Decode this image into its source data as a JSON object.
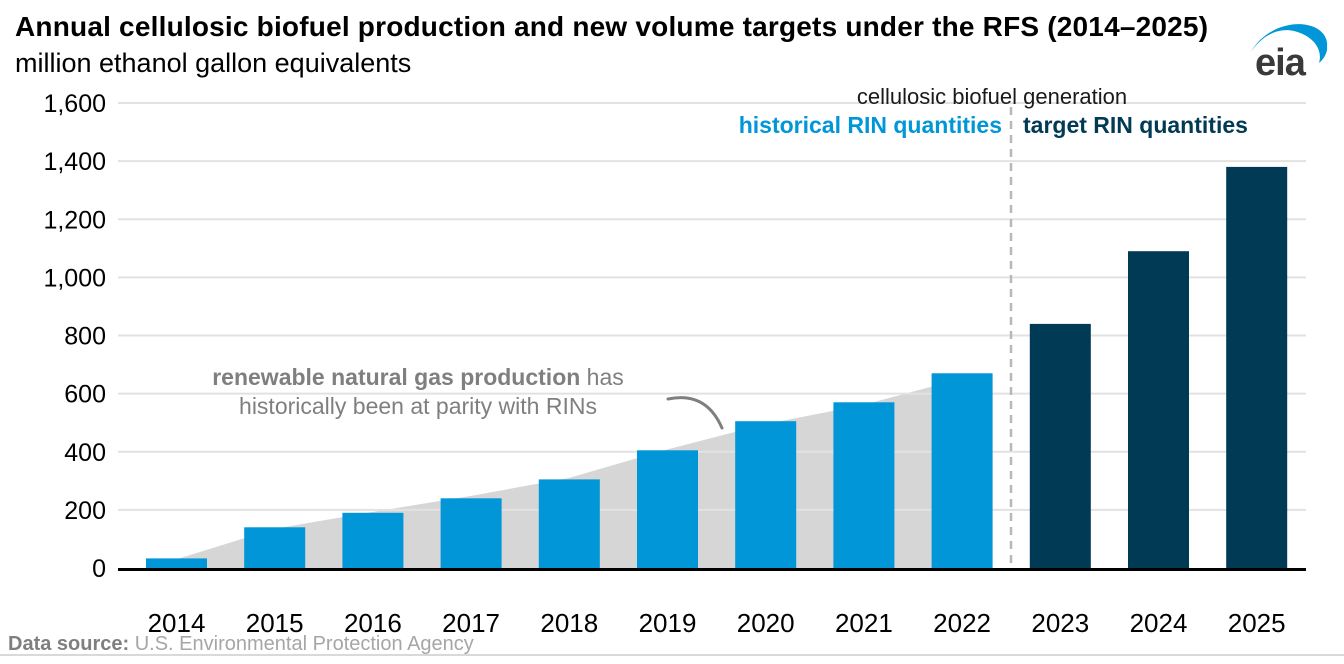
{
  "header": {
    "title": "Annual cellulosic biofuel production and new volume targets under the RFS (2014–2025)",
    "subtitle": "million ethanol gallon equivalents",
    "logo_text": "eia"
  },
  "legend": {
    "group_label": "cellulosic biofuel generation",
    "historical_label": "historical RIN quantities",
    "target_label": "target RIN quantities"
  },
  "annotation": {
    "line1_bold": "renewable natural gas production",
    "line1_rest": " has",
    "line2": "historically been at parity with RINs"
  },
  "footer": {
    "label": "Data source:",
    "text": " U.S. Environmental Protection Agency"
  },
  "colors": {
    "historical": "#0096d7",
    "target": "#003a54",
    "rng_area": "#d6d6d6",
    "gridline": "#e2e2e2",
    "axis_line": "#000000",
    "divider": "#b8b8b8",
    "annotation": "#7f7f7f",
    "tick_text": "#000000",
    "logo_text": "#3a3a3a"
  },
  "chart_data": {
    "type": "bar",
    "title": "Annual cellulosic biofuel production and new volume targets under the RFS (2014–2025)",
    "ylabel": "million ethanol gallon equivalents",
    "xlabel": "",
    "categories": [
      "2014",
      "2015",
      "2016",
      "2017",
      "2018",
      "2019",
      "2020",
      "2021",
      "2022",
      "2023",
      "2024",
      "2025"
    ],
    "series": [
      {
        "name": "historical RIN quantities",
        "color_key": "historical",
        "values": [
          33,
          140,
          190,
          240,
          305,
          405,
          505,
          570,
          670,
          null,
          null,
          null
        ]
      },
      {
        "name": "target RIN quantities",
        "color_key": "target",
        "values": [
          null,
          null,
          null,
          null,
          null,
          null,
          null,
          null,
          null,
          840,
          1090,
          1380
        ]
      }
    ],
    "area_series": {
      "name": "renewable natural gas production",
      "color_key": "rng_area",
      "points_index_value": [
        [
          -0.31,
          0
        ],
        [
          0,
          30
        ],
        [
          1,
          135
        ],
        [
          2,
          193
        ],
        [
          3,
          248
        ],
        [
          4,
          310
        ],
        [
          5,
          408
        ],
        [
          6,
          495
        ],
        [
          7,
          562
        ],
        [
          8,
          652
        ],
        [
          8.31,
          668
        ]
      ]
    },
    "ylim": [
      0,
      1600
    ],
    "yticks": [
      0,
      200,
      400,
      600,
      800,
      1000,
      1200,
      1400,
      1600
    ],
    "ytick_labels": [
      "0",
      "200",
      "400",
      "600",
      "800",
      "1,000",
      "1,200",
      "1,400",
      "1,600"
    ],
    "grid": "horizontal",
    "legend_position": "top-right",
    "divider_between": [
      "2022",
      "2023"
    ]
  }
}
